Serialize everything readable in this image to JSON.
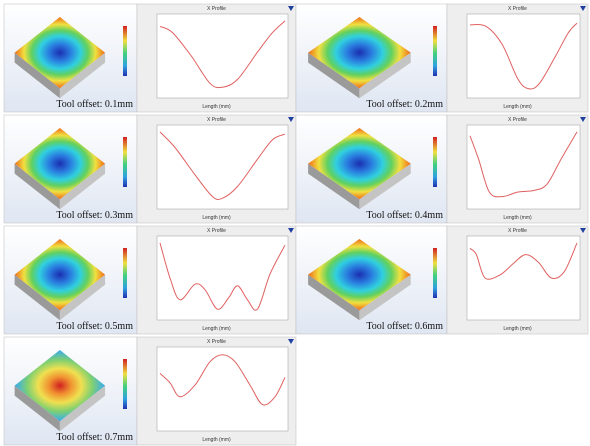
{
  "panels": [
    {
      "caption": "Tool offset: 0.1mm",
      "profile_title": "X Profile",
      "x_label": "Length (mm)"
    },
    {
      "caption": "Tool offset: 0.2mm",
      "profile_title": "X Profile",
      "x_label": "Length (mm)"
    },
    {
      "caption": "Tool offset: 0.3mm",
      "profile_title": "X Profile",
      "x_label": "Length (mm)"
    },
    {
      "caption": "Tool offset: 0.4mm",
      "profile_title": "X Profile",
      "x_label": "Length (mm)"
    },
    {
      "caption": "Tool offset: 0.5mm",
      "profile_title": "X Profile",
      "x_label": "Length (mm)"
    },
    {
      "caption": "Tool offset: 0.6mm",
      "profile_title": "X Profile",
      "x_label": "Length (mm)"
    },
    {
      "caption": "Tool offset: 0.7mm",
      "profile_title": "X Profile",
      "x_label": "Length (mm)"
    }
  ]
}
